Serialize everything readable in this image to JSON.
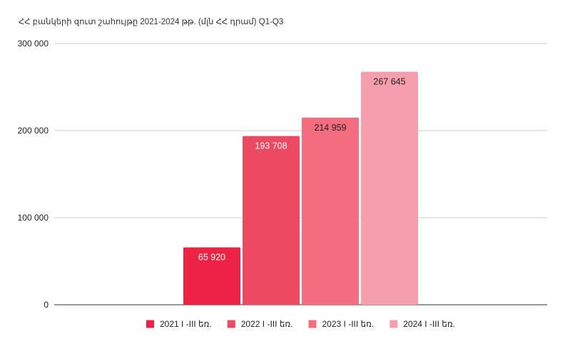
{
  "chart_data": {
    "type": "bar",
    "title": "ՀՀ բանկերի զուտ շահույթը 2021-2024 թթ. (մլն ՀՀ դրամ) Q1-Q3",
    "xlabel": "",
    "ylabel": "",
    "ylim": [
      0,
      300000
    ],
    "yticks": [
      0,
      100000,
      200000,
      300000
    ],
    "ytick_labels": [
      "0",
      "100 000",
      "200 000",
      "300 000"
    ],
    "grid": true,
    "legend_position": "bottom",
    "series": [
      {
        "name": "2021 I -III եռ.",
        "value": 65920,
        "label": "65 920",
        "color": "#ee2244",
        "label_color": "#ffffff"
      },
      {
        "name": "2022 I -III եռ.",
        "value": 193708,
        "label": "193 708",
        "color": "#eb4a62",
        "label_color": "#ffffff"
      },
      {
        "name": "2023 I -III եռ.",
        "value": 214959,
        "label": "214 959",
        "color": "#f46c80",
        "label_color": "#222222"
      },
      {
        "name": "2024 I -III եռ.",
        "value": 267645,
        "label": "267 645",
        "color": "#f49fab",
        "label_color": "#222222"
      }
    ]
  }
}
